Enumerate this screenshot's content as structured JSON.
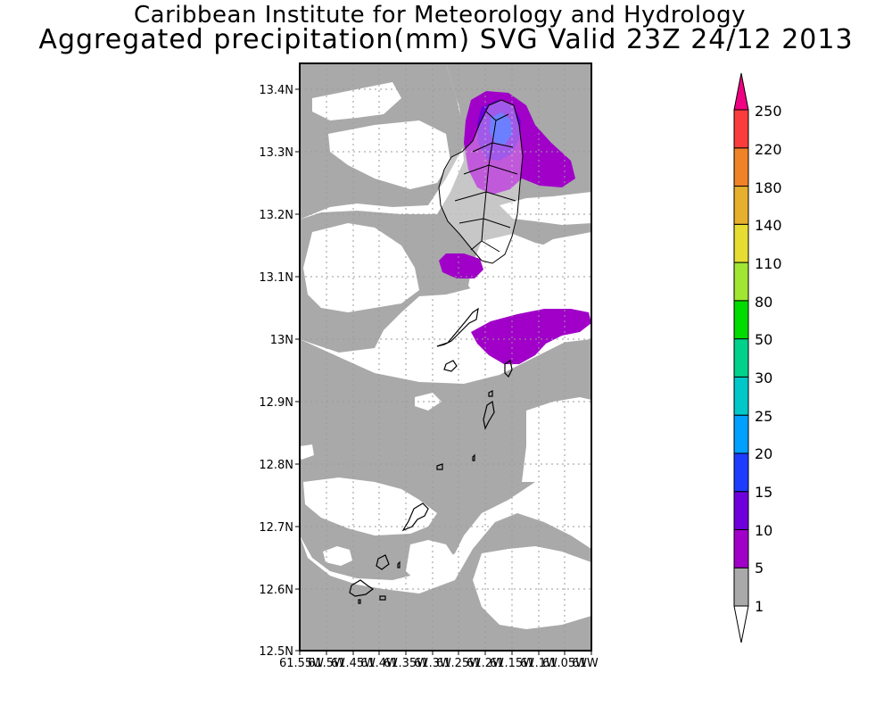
{
  "title_line1": "Caribbean Institute for Meteorology and Hydrology",
  "title_line2": "Aggregated precipitation(mm) SVG Valid 23Z 24/12 2013",
  "lat_labels": [
    "13.4N",
    "13.3N",
    "13.2N",
    "13.1N",
    "13N",
    "12.9N",
    "12.8N",
    "12.7N",
    "12.6N",
    "12.5N"
  ],
  "lon_labels": [
    "61.55W",
    "61.5W",
    "61.45W",
    "61.4W",
    "61.35W",
    "61.3W",
    "61.25W",
    "61.2W",
    "61.15W",
    "61.1W",
    "61.05W",
    "61W"
  ],
  "colorbar": {
    "labels": [
      "1",
      "5",
      "10",
      "15",
      "20",
      "25",
      "30",
      "50",
      "80",
      "110",
      "140",
      "180",
      "220",
      "250"
    ],
    "colors": [
      "#ffffff",
      "#a9a9a9",
      "#a000c8",
      "#6e00dc",
      "#1e3cff",
      "#00a0ff",
      "#00c8c8",
      "#00d28c",
      "#00dc00",
      "#a0e632",
      "#e6dc32",
      "#e6af2d",
      "#f08228",
      "#fa3c3c",
      "#f00082"
    ]
  },
  "colors": {
    "no_rain": "#ffffff",
    "light_rain": "#a9a9a9",
    "rain_5_10": "#a000c8",
    "rain_10_15": "#6e00dc",
    "rain_15_20": "#1e3cff",
    "coastline": "#000000"
  },
  "chart_data": {
    "type": "map",
    "title": "Aggregated precipitation(mm) SVG Valid 23Z 24/12 2013",
    "region": "St. Vincent and the Grenadines",
    "lat_range": [
      12.5,
      13.45
    ],
    "lon_range": [
      -61.55,
      -61.0
    ],
    "contour_levels": [
      1,
      5,
      10,
      15,
      20,
      25,
      30,
      50,
      80,
      110,
      140,
      180,
      220,
      250
    ],
    "units": "mm"
  }
}
